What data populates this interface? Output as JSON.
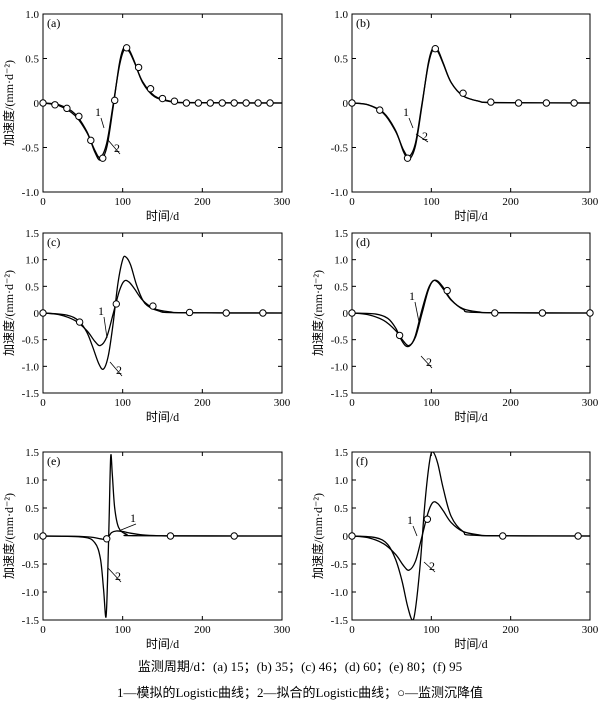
{
  "caption": {
    "periods": "监测周期/d：(a) 15；(b) 35；(c) 46；(d) 60；(e) 80；(f) 95",
    "legend": "1—模拟的Logistic曲线；2—拟合的Logistic曲线；○—监测沉降值"
  },
  "chart_data": [
    {
      "type": "line",
      "panel": "(a)",
      "xlabel": "时间/d",
      "ylabel": "加速度/(mm·d⁻²)",
      "xlim": [
        0,
        300
      ],
      "ylim": [
        -1.0,
        1.0
      ],
      "xticks": [
        "0",
        "100",
        "200",
        "300"
      ],
      "yticks": [
        "-1.0",
        "-0.5",
        "0",
        "0.5",
        "1.0"
      ],
      "curve_labels": [
        "1",
        "2"
      ],
      "series": [
        {
          "label": "1",
          "x": [
            0,
            20,
            40,
            55,
            65,
            72,
            80,
            88,
            96,
            102,
            108,
            115,
            125,
            140,
            160,
            180,
            300
          ],
          "y": [
            0,
            -0.03,
            -0.14,
            -0.33,
            -0.53,
            -0.61,
            -0.45,
            -0.02,
            0.42,
            0.6,
            0.58,
            0.45,
            0.24,
            0.08,
            0.02,
            0.005,
            0
          ]
        },
        {
          "label": "2",
          "x": [
            0,
            20,
            40,
            55,
            65,
            72,
            80,
            88,
            96,
            102,
            108,
            115,
            125,
            140,
            160,
            180,
            300
          ],
          "y": [
            0,
            -0.02,
            -0.12,
            -0.32,
            -0.55,
            -0.64,
            -0.5,
            -0.05,
            0.45,
            0.63,
            0.6,
            0.46,
            0.23,
            0.07,
            0.015,
            0.003,
            0
          ]
        }
      ],
      "observed": {
        "x": [
          0,
          15,
          30,
          45,
          60,
          75,
          90,
          105,
          120,
          135,
          150,
          165,
          180,
          195,
          210,
          225,
          240,
          255,
          270,
          285
        ],
        "y": [
          0,
          -0.02,
          -0.06,
          -0.15,
          -0.42,
          -0.62,
          0.03,
          0.62,
          0.4,
          0.16,
          0.05,
          0.02,
          0,
          0,
          0,
          0,
          0,
          0,
          0,
          0
        ]
      }
    },
    {
      "type": "line",
      "panel": "(b)",
      "xlabel": "时间/d",
      "ylabel": "",
      "xlim": [
        0,
        300
      ],
      "ylim": [
        -1.0,
        1.0
      ],
      "xticks": [
        "0",
        "100",
        "200",
        "300"
      ],
      "yticks": [
        "-1.0",
        "-0.5",
        "0",
        "0.5",
        "1.0"
      ],
      "curve_labels": [
        "1",
        "2"
      ],
      "series": [
        {
          "label": "1",
          "x": [
            0,
            20,
            40,
            55,
            65,
            72,
            80,
            88,
            96,
            102,
            108,
            115,
            125,
            140,
            160,
            180,
            300
          ],
          "y": [
            0,
            -0.02,
            -0.12,
            -0.32,
            -0.53,
            -0.6,
            -0.45,
            -0.02,
            0.42,
            0.6,
            0.58,
            0.44,
            0.23,
            0.08,
            0.02,
            0.005,
            0
          ]
        },
        {
          "label": "2",
          "x": [
            0,
            20,
            40,
            55,
            65,
            72,
            80,
            88,
            96,
            102,
            108,
            115,
            125,
            140,
            160,
            180,
            300
          ],
          "y": [
            0,
            -0.02,
            -0.11,
            -0.31,
            -0.55,
            -0.63,
            -0.48,
            -0.04,
            0.44,
            0.62,
            0.6,
            0.45,
            0.23,
            0.08,
            0.02,
            0.004,
            0
          ]
        }
      ],
      "observed": {
        "x": [
          0,
          35,
          70,
          105,
          140,
          175,
          210,
          245,
          280
        ],
        "y": [
          0,
          -0.08,
          -0.62,
          0.61,
          0.11,
          0.01,
          0,
          0,
          0
        ]
      }
    },
    {
      "type": "line",
      "panel": "(c)",
      "xlabel": "时间/d",
      "ylabel": "加速度/(mm·d⁻²)",
      "xlim": [
        0,
        300
      ],
      "ylim": [
        -1.5,
        1.5
      ],
      "xticks": [
        "0",
        "100",
        "200",
        "300"
      ],
      "yticks": [
        "-1.5",
        "-1.0",
        "-0.5",
        "0",
        "0.5",
        "1.0",
        "1.5"
      ],
      "curve_labels": [
        "1",
        "2"
      ],
      "series": [
        {
          "label": "1",
          "x": [
            0,
            20,
            40,
            55,
            65,
            72,
            80,
            88,
            96,
            102,
            108,
            115,
            125,
            140,
            160,
            180,
            300
          ],
          "y": [
            0,
            -0.03,
            -0.14,
            -0.33,
            -0.53,
            -0.61,
            -0.45,
            -0.02,
            0.42,
            0.6,
            0.58,
            0.45,
            0.24,
            0.08,
            0.02,
            0.005,
            0
          ]
        },
        {
          "label": "2",
          "x": [
            0,
            30,
            45,
            55,
            62,
            70,
            76,
            82,
            88,
            94,
            100,
            104,
            110,
            118,
            128,
            145,
            170,
            300
          ],
          "y": [
            0,
            -0.04,
            -0.15,
            -0.36,
            -0.62,
            -0.95,
            -1.05,
            -0.8,
            -0.2,
            0.55,
            1.0,
            1.05,
            0.9,
            0.5,
            0.18,
            0.04,
            0.005,
            0
          ]
        }
      ],
      "observed": {
        "x": [
          0,
          46,
          92,
          138,
          184,
          230,
          276
        ],
        "y": [
          0,
          -0.17,
          0.17,
          0.13,
          0.01,
          0,
          0
        ]
      }
    },
    {
      "type": "line",
      "panel": "(d)",
      "xlabel": "时间/d",
      "ylabel": "加速度/(mm·d⁻²)",
      "xlim": [
        0,
        300
      ],
      "ylim": [
        -1.5,
        1.5
      ],
      "xticks": [
        "0",
        "100",
        "200",
        "300"
      ],
      "yticks": [
        "-1.5",
        "-1.0",
        "-0.5",
        "0",
        "0.5",
        "1.0",
        "1.5"
      ],
      "curve_labels": [
        "1",
        "2"
      ],
      "series": [
        {
          "label": "1",
          "x": [
            0,
            20,
            40,
            55,
            65,
            72,
            80,
            88,
            96,
            102,
            108,
            115,
            125,
            140,
            160,
            180,
            300
          ],
          "y": [
            0,
            -0.03,
            -0.14,
            -0.33,
            -0.53,
            -0.61,
            -0.45,
            -0.02,
            0.42,
            0.6,
            0.58,
            0.45,
            0.24,
            0.08,
            0.02,
            0.005,
            0
          ]
        },
        {
          "label": "2",
          "x": [
            0,
            30,
            45,
            55,
            62,
            68,
            74,
            80,
            88,
            96,
            102,
            108,
            115,
            125,
            140,
            160,
            300
          ],
          "y": [
            0,
            -0.02,
            -0.1,
            -0.28,
            -0.5,
            -0.62,
            -0.6,
            -0.42,
            0.05,
            0.45,
            0.6,
            0.6,
            0.48,
            0.25,
            0.07,
            0.01,
            0
          ]
        }
      ],
      "observed": {
        "x": [
          0,
          60,
          120,
          180,
          240,
          300
        ],
        "y": [
          0,
          -0.42,
          0.42,
          0,
          0,
          0
        ]
      }
    },
    {
      "type": "line",
      "panel": "(e)",
      "xlabel": "时间/d",
      "ylabel": "加速度/(mm·d⁻²)",
      "xlim": [
        0,
        300
      ],
      "ylim": [
        -1.5,
        1.5
      ],
      "xticks": [
        "0",
        "100",
        "200",
        "300"
      ],
      "yticks": [
        "-1.5",
        "-1.0",
        "-0.5",
        "0",
        "0.5",
        "1.0",
        "1.5"
      ],
      "curve_labels": [
        "1",
        "2"
      ],
      "series": [
        {
          "label": "1",
          "x": [
            0,
            40,
            60,
            72,
            78,
            82,
            86,
            92,
            100,
            110,
            125,
            145,
            170,
            300
          ],
          "y": [
            0,
            -0.005,
            -0.02,
            -0.05,
            -0.06,
            -0.02,
            0.06,
            0.09,
            0.08,
            0.05,
            0.02,
            0.005,
            0.001,
            0
          ]
        },
        {
          "label": "2",
          "x": [
            0,
            50,
            65,
            72,
            76,
            79,
            81,
            83,
            85,
            87,
            90,
            95,
            105,
            120,
            300
          ],
          "y": [
            0,
            -0.02,
            -0.12,
            -0.4,
            -0.95,
            -1.45,
            -0.8,
            0.3,
            1.42,
            1.1,
            0.5,
            0.15,
            0.03,
            0.005,
            0
          ]
        }
      ],
      "observed": {
        "x": [
          0,
          80,
          160,
          240
        ],
        "y": [
          0,
          -0.05,
          0,
          0
        ]
      }
    },
    {
      "type": "line",
      "panel": "(f)",
      "xlabel": "时间/d",
      "ylabel": "加速度/(mm·d⁻²)",
      "xlim": [
        0,
        300
      ],
      "ylim": [
        -1.5,
        1.5
      ],
      "xticks": [
        "0",
        "100",
        "200",
        "300"
      ],
      "yticks": [
        "-1.5",
        "-1.0",
        "-0.5",
        "0",
        "0.5",
        "1.0",
        "1.5"
      ],
      "curve_labels": [
        "1",
        "2"
      ],
      "series": [
        {
          "label": "1",
          "x": [
            0,
            20,
            40,
            55,
            65,
            72,
            80,
            88,
            96,
            102,
            108,
            115,
            125,
            140,
            160,
            180,
            300
          ],
          "y": [
            0,
            -0.03,
            -0.14,
            -0.33,
            -0.53,
            -0.61,
            -0.45,
            -0.02,
            0.42,
            0.6,
            0.58,
            0.45,
            0.24,
            0.08,
            0.02,
            0.005,
            0
          ]
        },
        {
          "label": "2",
          "x": [
            0,
            30,
            45,
            55,
            63,
            70,
            76,
            80,
            86,
            92,
            98,
            102,
            108,
            115,
            125,
            140,
            160,
            300
          ],
          "y": [
            0,
            -0.03,
            -0.15,
            -0.42,
            -0.8,
            -1.25,
            -1.5,
            -1.3,
            -0.5,
            0.6,
            1.35,
            1.5,
            1.3,
            0.85,
            0.35,
            0.08,
            0.01,
            0
          ]
        }
      ],
      "observed": {
        "x": [
          0,
          95,
          190,
          285
        ],
        "y": [
          0,
          0.3,
          0,
          0
        ]
      }
    }
  ]
}
